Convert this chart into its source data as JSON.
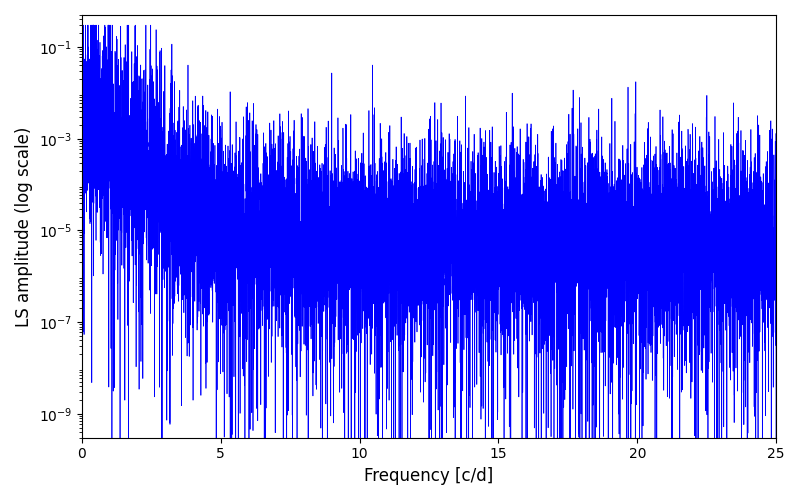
{
  "xlabel": "Frequency [c/d]",
  "ylabel": "LS amplitude (log scale)",
  "line_color": "#0000ff",
  "line_width": 0.5,
  "xlim": [
    0,
    25
  ],
  "ylim_log": [
    3e-10,
    0.5
  ],
  "yticks": [
    1e-09,
    1e-07,
    1e-05,
    0.001,
    0.1
  ],
  "xticks": [
    0,
    5,
    10,
    15,
    20,
    25
  ],
  "figsize": [
    8.0,
    5.0
  ],
  "dpi": 100,
  "freq_max": 25.0,
  "n_points": 10000,
  "seed": 12345,
  "background_color": "#ffffff"
}
